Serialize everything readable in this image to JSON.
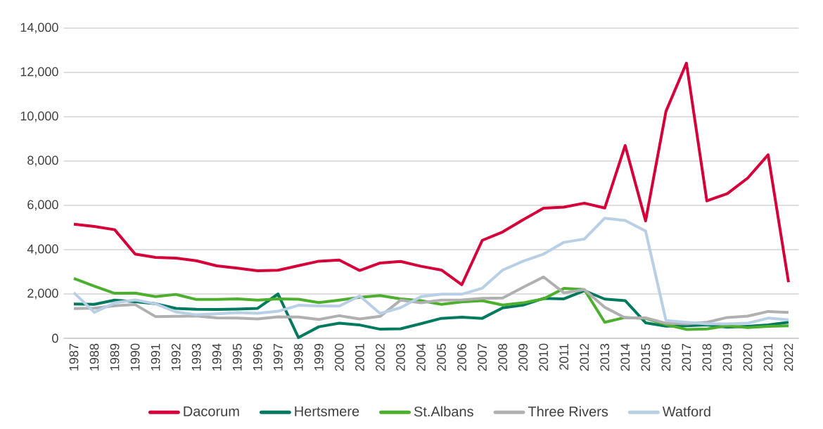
{
  "chart_data": {
    "type": "line",
    "categories": [
      "1987",
      "1988",
      "1989",
      "1990",
      "1991",
      "1992",
      "1993",
      "1994",
      "1995",
      "1996",
      "1997",
      "1998",
      "1999",
      "2000",
      "2001",
      "2002",
      "2003",
      "2004",
      "2005",
      "2006",
      "2007",
      "2008",
      "2009",
      "2010",
      "2011",
      "2012",
      "2013",
      "2014",
      "2015",
      "2016",
      "2017",
      "2018",
      "2019",
      "2020",
      "2021",
      "2022"
    ],
    "series": [
      {
        "name": "Dacorum",
        "color": "#d5003a",
        "values": [
          5150,
          5050,
          4900,
          3800,
          3650,
          3620,
          3500,
          3270,
          3170,
          3050,
          3070,
          3280,
          3480,
          3530,
          3060,
          3400,
          3470,
          3250,
          3080,
          2420,
          4420,
          4800,
          5350,
          5870,
          5920,
          6100,
          5880,
          8700,
          5300,
          10250,
          12420,
          6200,
          6530,
          7230,
          8280,
          2530
        ]
      },
      {
        "name": "Hertsmere",
        "color": "#007a5e",
        "values": [
          1550,
          1530,
          1720,
          1650,
          1560,
          1350,
          1310,
          1300,
          1320,
          1350,
          2000,
          30,
          520,
          680,
          600,
          410,
          430,
          660,
          900,
          950,
          900,
          1370,
          1500,
          1800,
          1780,
          2150,
          1770,
          1700,
          700,
          550,
          560,
          600,
          500,
          540,
          600,
          720
        ]
      },
      {
        "name": "St.Albans",
        "color": "#4caf2e",
        "values": [
          2700,
          2350,
          2030,
          2040,
          1880,
          1980,
          1750,
          1750,
          1780,
          1720,
          1780,
          1760,
          1610,
          1720,
          1850,
          1930,
          1780,
          1700,
          1530,
          1640,
          1700,
          1500,
          1600,
          1780,
          2250,
          2200,
          720,
          940,
          900,
          620,
          400,
          420,
          560,
          480,
          540,
          560
        ]
      },
      {
        "name": "Three Rivers",
        "color": "#b0b0b0",
        "values": [
          1340,
          1360,
          1470,
          1520,
          980,
          990,
          1010,
          920,
          910,
          870,
          970,
          960,
          850,
          1020,
          870,
          990,
          1720,
          1600,
          1720,
          1730,
          1800,
          1820,
          2300,
          2770,
          2050,
          2200,
          1400,
          920,
          920,
          680,
          650,
          720,
          940,
          1000,
          1210,
          1170
        ]
      },
      {
        "name": "Watford",
        "color": "#b8cfe6",
        "values": [
          2060,
          1170,
          1600,
          1730,
          1560,
          1190,
          1060,
          1100,
          1160,
          1130,
          1220,
          1490,
          1460,
          1450,
          1910,
          1120,
          1380,
          1880,
          1990,
          1990,
          2260,
          3080,
          3480,
          3800,
          4330,
          4480,
          5420,
          5320,
          4840,
          800,
          720,
          650,
          650,
          680,
          910,
          830
        ]
      }
    ],
    "ylim": [
      0,
      14000
    ],
    "yticks": [
      0,
      {
        "value": 2000,
        "label": "2,000"
      },
      {
        "value": 4000,
        "label": "4,000"
      },
      {
        "value": 6000,
        "label": "6,000"
      },
      {
        "value": 8000,
        "label": "8,000"
      },
      {
        "value": 10000,
        "label": "10,000"
      },
      {
        "value": 12000,
        "label": "12,000"
      },
      {
        "value": 14000,
        "label": "14,000"
      }
    ],
    "grid": "y",
    "legend": "bottom",
    "marker": "none",
    "line_style": "solid"
  }
}
